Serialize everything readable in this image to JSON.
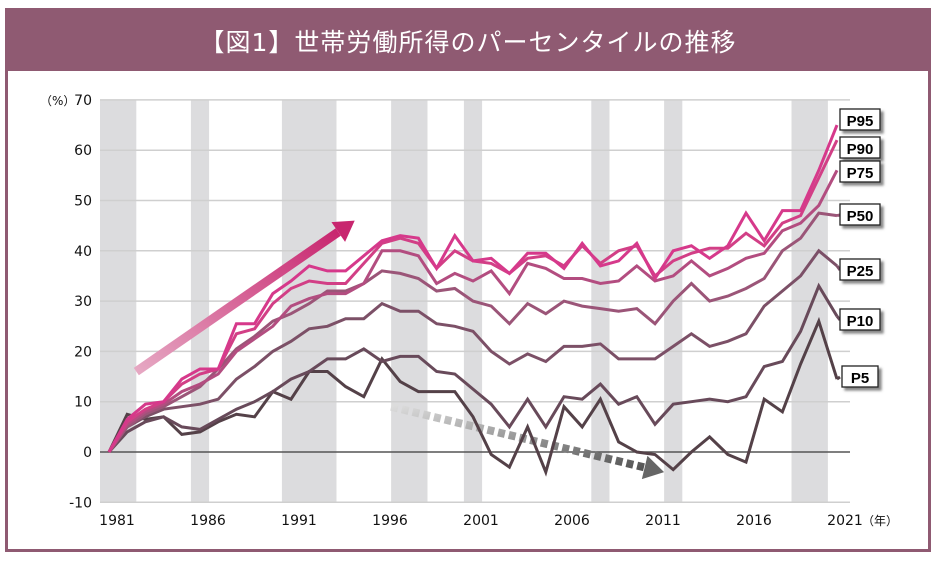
{
  "header": {
    "title": "【図1】世帯労働所得のパーセンタイルの推移"
  },
  "colors": {
    "frame": "#8f5a72",
    "band": "#dcdcde",
    "grid": "#cfcfcf",
    "zero": "#555555",
    "up_arrow": "#c8266f",
    "down_arrow": "#666666"
  },
  "chart_data": {
    "type": "line",
    "title": "【図1】世帯労働所得のパーセンタイルの推移",
    "ylabel": "（%）",
    "xlabel": "（年）",
    "ylim": [
      -10,
      70
    ],
    "xlim": [
      1980.5,
      2021.5
    ],
    "yticks": [
      "70",
      "60",
      "50",
      "40",
      "30",
      "20",
      "10",
      "0",
      "-10"
    ],
    "ytick_values": [
      70,
      60,
      50,
      40,
      30,
      20,
      10,
      0,
      -10
    ],
    "xticks": [
      "1981",
      "1986",
      "1991",
      "1996",
      "2001",
      "2006",
      "2011",
      "2016",
      "2021"
    ],
    "xtick_values": [
      1981,
      1986,
      1991,
      1996,
      2001,
      2006,
      2011,
      2016,
      2021
    ],
    "grid": true,
    "recession_bands": [
      [
        1980.5,
        1982.5
      ],
      [
        1985.5,
        1986.5
      ],
      [
        1990.5,
        1993.5
      ],
      [
        1996.5,
        1998.5
      ],
      [
        2000.5,
        2001.5
      ],
      [
        2007.5,
        2008.5
      ],
      [
        2011.5,
        2012.5
      ],
      [
        2018.5,
        2020.5
      ]
    ],
    "x": [
      1981,
      1982,
      1983,
      1984,
      1985,
      1986,
      1987,
      1988,
      1989,
      1990,
      1991,
      1992,
      1993,
      1994,
      1995,
      1996,
      1997,
      1998,
      1999,
      2000,
      2001,
      2002,
      2003,
      2004,
      2005,
      2006,
      2007,
      2008,
      2009,
      2010,
      2011,
      2012,
      2013,
      2014,
      2015,
      2016,
      2017,
      2018,
      2019,
      2020,
      2021
    ],
    "series": [
      {
        "name": "P95",
        "color": "#d6398b",
        "values": [
          0,
          6.5,
          9.5,
          10,
          14.5,
          16.5,
          16.5,
          25.5,
          25.5,
          31.5,
          34,
          37,
          36,
          36,
          39,
          42,
          43,
          42.5,
          36.5,
          43,
          38,
          38.5,
          35.5,
          39.5,
          39.5,
          36.5,
          41.5,
          37,
          38,
          41.5,
          34.5,
          40,
          41,
          38.5,
          41,
          47.5,
          42,
          48,
          48,
          56,
          65
        ]
      },
      {
        "name": "P90",
        "color": "#d23f86",
        "values": [
          0,
          6,
          8.5,
          10,
          13.5,
          15.5,
          16.5,
          23.5,
          24.5,
          29.5,
          32.5,
          34,
          33.5,
          33.5,
          37.5,
          41.5,
          42.5,
          41.5,
          36.5,
          40,
          38,
          37.5,
          35.5,
          38.5,
          39,
          37,
          41,
          37.5,
          40,
          41,
          35,
          38,
          39.5,
          40.5,
          40.5,
          43.5,
          41,
          45.5,
          47,
          54.5,
          62
        ]
      },
      {
        "name": "P75",
        "color": "#b34d80",
        "values": [
          0,
          5.5,
          8,
          9.5,
          12,
          13.5,
          15.5,
          20,
          22.5,
          25,
          29,
          30.5,
          31.5,
          31.5,
          33.5,
          40,
          40,
          39,
          33.5,
          35.5,
          34,
          36,
          31.5,
          37.5,
          36.5,
          34.5,
          34.5,
          33.5,
          34,
          37,
          34,
          35,
          38,
          35,
          36.5,
          38.5,
          39.5,
          44,
          45.5,
          49,
          56
        ]
      },
      {
        "name": "P50",
        "color": "#9b5578",
        "values": [
          0,
          5,
          7.5,
          9,
          11,
          13,
          16.5,
          20.5,
          23,
          26,
          27.5,
          29.5,
          32,
          32,
          33.5,
          36,
          35.5,
          34.5,
          32,
          32.5,
          30,
          29,
          25.5,
          29.5,
          27.5,
          30,
          29,
          28.5,
          28,
          28.5,
          25.5,
          30,
          33.5,
          30,
          31,
          32.5,
          34.5,
          40,
          42.5,
          47.5,
          47
        ]
      },
      {
        "name": "P25",
        "color": "#7c5067",
        "values": [
          0,
          5,
          7,
          8.5,
          9,
          9.5,
          10.5,
          14.5,
          17,
          20,
          22,
          24.5,
          25,
          26.5,
          26.5,
          29.5,
          28,
          28,
          25.5,
          25,
          24,
          20,
          17.5,
          19.5,
          18,
          21,
          21,
          21.5,
          18.5,
          18.5,
          18.5,
          21,
          23.5,
          21,
          22,
          23.5,
          29,
          32,
          35,
          40,
          37
        ]
      },
      {
        "name": "P10",
        "color": "#684a5a",
        "values": [
          0,
          4,
          6,
          7,
          5,
          4.5,
          6.5,
          8.5,
          10,
          12,
          14.5,
          16,
          18.5,
          18.5,
          20.5,
          18,
          19,
          19,
          16,
          15.5,
          12.5,
          9.5,
          5,
          10.5,
          5,
          11,
          10.5,
          13.5,
          9.5,
          11,
          5.5,
          9.5,
          10,
          10.5,
          10,
          11,
          17,
          18,
          24,
          33,
          27
        ]
      },
      {
        "name": "P5",
        "color": "#544148",
        "values": [
          0,
          7.5,
          6.5,
          7,
          3.5,
          4,
          6,
          7.5,
          7,
          12,
          10.5,
          16,
          16,
          13,
          11,
          18.5,
          14,
          12,
          12,
          12,
          7,
          -0.5,
          -3,
          5,
          -4,
          9,
          5,
          10.5,
          2,
          0,
          -0.5,
          -3.5,
          0,
          3,
          -0.5,
          -2,
          10.5,
          8,
          17.5,
          26,
          14.5
        ]
      }
    ],
    "label_boxes": [
      "P95",
      "P90",
      "P75",
      "P50",
      "P25",
      "P10",
      "P5"
    ],
    "annotations": [
      {
        "type": "arrow-up",
        "from": [
          1982.5,
          16
        ],
        "to": [
          1994.5,
          46
        ],
        "color": "#c8266f"
      },
      {
        "type": "arrow-down-dashed",
        "from": [
          1996.5,
          9
        ],
        "to": [
          2011.5,
          -4
        ],
        "color": "#666666"
      }
    ]
  }
}
